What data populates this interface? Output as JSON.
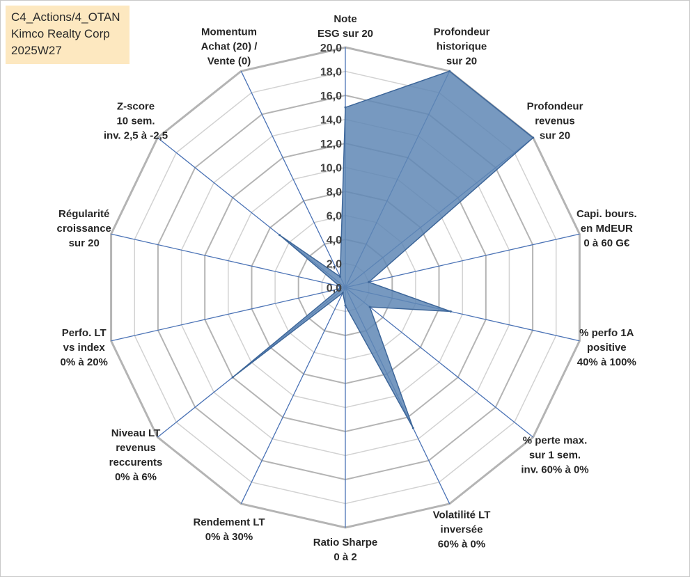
{
  "info": {
    "line1": "C4_Actions/4_OTAN",
    "line2": "Kimco Realty Corp",
    "line3": "2025W27"
  },
  "chart_data": {
    "type": "radar",
    "title": "",
    "rlim": [
      0,
      20
    ],
    "tick_step": 2,
    "tick_labels": [
      "0,0",
      "2,0",
      "4,0",
      "6,0",
      "8,0",
      "10,0",
      "12,0",
      "14,0",
      "16,0",
      "18,0",
      "20,0"
    ],
    "grid": true,
    "axes": [
      {
        "lines": [
          "Note",
          "ESG sur 20"
        ],
        "value": 15.0
      },
      {
        "lines": [
          "Profondeur",
          "historique",
          "sur 20"
        ],
        "value": 20.0
      },
      {
        "lines": [
          "Profondeur",
          "revenus",
          "sur 20"
        ],
        "value": 20.0
      },
      {
        "lines": [
          "Capi. bours.",
          "en MdEUR",
          "0 à 60 G€"
        ],
        "value": 2.0
      },
      {
        "lines": [
          "% perfo 1A",
          "positive",
          "40% à 100%"
        ],
        "value": 9.0
      },
      {
        "lines": [
          "% perte max.",
          "sur 1 sem.",
          "inv. 60% à 0%"
        ],
        "value": 2.6
      },
      {
        "lines": [
          "Volatilité LT",
          "inversée",
          "60% à 0%"
        ],
        "value": 13.0
      },
      {
        "lines": [
          "Ratio Sharpe",
          "0 à 2"
        ],
        "value": 1.5
      },
      {
        "lines": [
          "Rendement LT",
          "0% à 30%"
        ],
        "value": 0.5
      },
      {
        "lines": [
          "Niveau LT",
          "revenus",
          "reccurents",
          "0% à 6%"
        ],
        "value": 12.0
      },
      {
        "lines": [
          "Perfo. LT",
          "vs index",
          "0% à 20%"
        ],
        "value": 0.5
      },
      {
        "lines": [
          "Régularité",
          "croissance",
          "sur 20"
        ],
        "value": 0.5
      },
      {
        "lines": [
          "Z-score",
          "10 sem.",
          "inv. 2,5 à -2,5"
        ],
        "value": 7.0
      },
      {
        "lines": [
          "Momentum",
          "Achat (20) /",
          "Vente (0)"
        ],
        "value": 1.0
      }
    ],
    "colors": {
      "fill": "#5f87b5",
      "stroke": "#3d6699",
      "spoke": "#4a72b5",
      "grid_outer": "#b4b4b4",
      "grid_inner": "#d2d2d2"
    }
  }
}
